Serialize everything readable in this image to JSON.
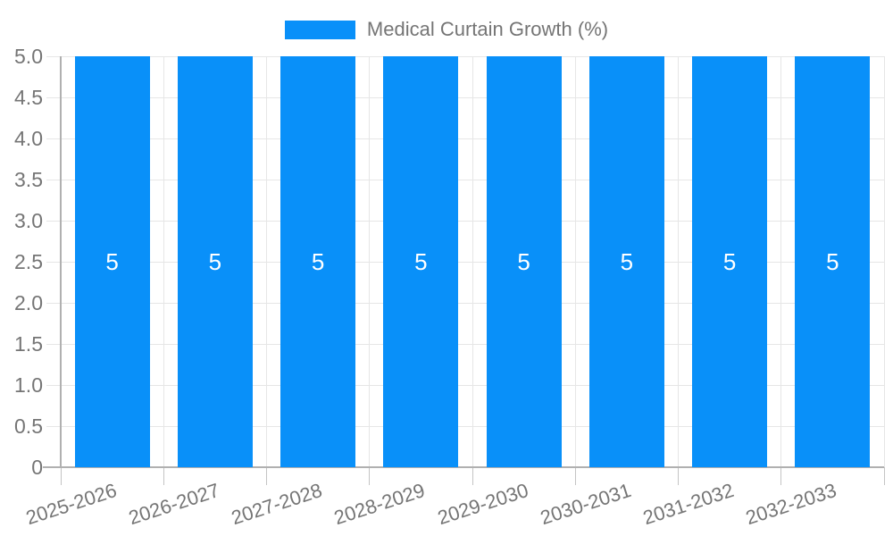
{
  "legend": {
    "label": "Medical Curtain Growth (%)"
  },
  "colors": {
    "bar": "#0990f9",
    "grid": "#e6e6e6",
    "axis": "#b0b0b0",
    "tick": "#c4c4c4",
    "axis_text": "#757575",
    "value_label": "#ffffff",
    "background": "#ffffff"
  },
  "chart_data": {
    "type": "bar",
    "title": "Medical Curtain Growth (%)",
    "categories": [
      "2025-2026",
      "2026-2027",
      "2027-2028",
      "2028-2029",
      "2029-2030",
      "2030-2031",
      "2031-2032",
      "2032-2033"
    ],
    "series": [
      {
        "name": "Medical Curtain Growth (%)",
        "values": [
          5,
          5,
          5,
          5,
          5,
          5,
          5,
          5
        ],
        "color": "#0990f9"
      }
    ],
    "bar_value_labels": [
      "5",
      "5",
      "5",
      "5",
      "5",
      "5",
      "5",
      "5"
    ],
    "xlabel": "",
    "ylabel": "",
    "ylim": [
      0,
      5
    ],
    "ytick_step": 0.5,
    "ytick_labels": [
      "0",
      "0.5",
      "1.0",
      "1.5",
      "2.0",
      "2.5",
      "3.0",
      "3.5",
      "4.0",
      "4.5",
      "5.0"
    ],
    "grid": true,
    "legend_position": "top",
    "x_label_rotation_deg": -18
  }
}
